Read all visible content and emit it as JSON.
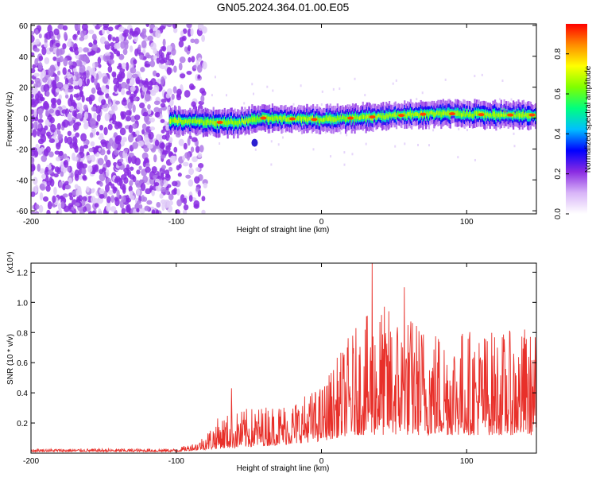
{
  "title": "GN05.2024.364.01.00.E05",
  "chart_data": [
    {
      "type": "heatmap",
      "xlabel": "Height of straight line (km)",
      "ylabel": "Frequency (Hz)",
      "xlim": [
        -200,
        148
      ],
      "ylim": [
        -62,
        61
      ],
      "x_ticks": [
        -200,
        -100,
        0,
        100
      ],
      "y_ticks": [
        -60,
        -40,
        -20,
        0,
        20,
        40,
        60
      ],
      "colormap": [
        "#ffffff",
        "#d8b4f8",
        "#8a2be2",
        "#0000ff",
        "#00bfff",
        "#00ff7f",
        "#7fff00",
        "#ffff00",
        "#ff8c00",
        "#ff0000"
      ],
      "colorbar": {
        "label": "Normalized spectral amplitude",
        "ticks": [
          0.0,
          0.2,
          0.4,
          0.6,
          0.8
        ],
        "tick_labels": [
          "0.0",
          "0.2",
          "0.4",
          "0.6",
          "0.8"
        ],
        "range": [
          0,
          0.95
        ]
      },
      "noise_region_x": [
        -200,
        -80
      ],
      "signal_band": {
        "x_start": -105,
        "x_end": 148,
        "center_hz": [
          {
            "x": -105,
            "y": -2
          },
          {
            "x": -60,
            "y": -3
          },
          {
            "x": -40,
            "y": 0
          },
          {
            "x": 0,
            "y": -1
          },
          {
            "x": 40,
            "y": 1
          },
          {
            "x": 80,
            "y": 3
          },
          {
            "x": 120,
            "y": 2
          },
          {
            "x": 148,
            "y": 2
          }
        ],
        "half_width_hz": 5,
        "peak_points_x": [
          -70,
          -40,
          -20,
          -5,
          20,
          35,
          55,
          70,
          90,
          110,
          130,
          145
        ]
      },
      "side_blob": {
        "x": -46,
        "y": -16
      }
    },
    {
      "type": "line",
      "xlabel": "Height of straight line (km)",
      "ylabel": "SNR (10 * v/v)",
      "multiplier": "(x10⁴)",
      "xlim": [
        -200,
        148
      ],
      "ylim": [
        0,
        1.26
      ],
      "x_ticks": [
        -200,
        -100,
        0,
        100
      ],
      "y_ticks": [
        0.2,
        0.4,
        0.6,
        0.8,
        1.0,
        1.2
      ],
      "y_tick_labels": [
        "0.2",
        "0.4",
        "0.6",
        "0.8",
        "1.0",
        "1.2"
      ],
      "color": "#e8302a",
      "envelope": [
        {
          "x": -200,
          "base": 0.01,
          "peak": 0.03
        },
        {
          "x": -100,
          "base": 0.01,
          "peak": 0.03
        },
        {
          "x": -85,
          "base": 0.02,
          "peak": 0.08
        },
        {
          "x": -70,
          "base": 0.03,
          "peak": 0.25
        },
        {
          "x": -50,
          "base": 0.04,
          "peak": 0.3
        },
        {
          "x": -20,
          "base": 0.06,
          "peak": 0.35
        },
        {
          "x": 0,
          "base": 0.08,
          "peak": 0.45
        },
        {
          "x": 20,
          "base": 0.12,
          "peak": 0.8
        },
        {
          "x": 40,
          "base": 0.12,
          "peak": 1.0
        },
        {
          "x": 80,
          "base": 0.12,
          "peak": 0.85
        },
        {
          "x": 148,
          "base": 0.12,
          "peak": 0.8
        }
      ],
      "peaks": [
        {
          "x": -62,
          "y": 0.43
        },
        {
          "x": 35,
          "y": 1.26
        },
        {
          "x": 57,
          "y": 1.1
        },
        {
          "x": 140,
          "y": 0.82
        }
      ]
    }
  ]
}
